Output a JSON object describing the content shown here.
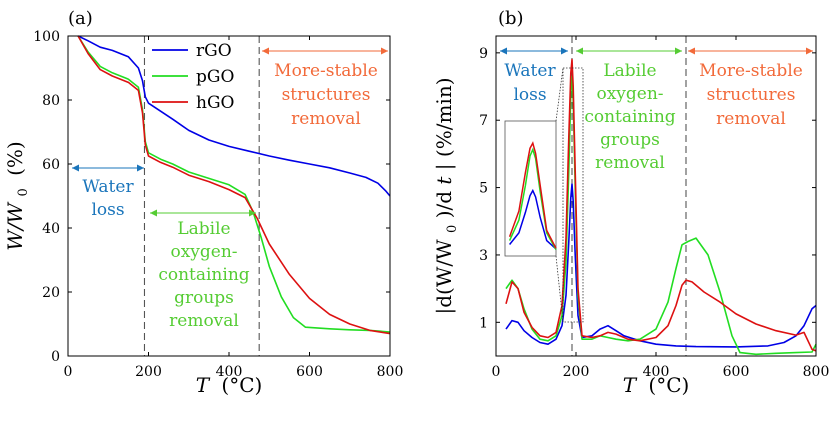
{
  "colors": {
    "rGO": "#0000e6",
    "pGO": "#22dd22",
    "hGO": "#dd1111",
    "water": "#1a75bb",
    "labile": "#55cc33",
    "stable": "#f26a3a",
    "dash": "#555555"
  },
  "panel_labels": {
    "a": "(a)",
    "b": "(b)"
  },
  "axis_labels": {
    "a_x_var": "T",
    "a_x_unit": "(°C)",
    "a_y_var": "W/W",
    "a_y_sub": "0",
    "a_y_unit": "(%)",
    "b_x_var": "T",
    "b_x_unit": "(°C)",
    "b_y_var": "|d(W/W",
    "b_y_sub": "0",
    "b_y_mid": ")/d",
    "b_y_t": "t",
    "b_y_unit": "| (%/min)"
  },
  "legend": [
    "rGO",
    "pGO",
    "hGO"
  ],
  "annotations": {
    "a_water": [
      "Water",
      "loss"
    ],
    "a_labile": [
      "Labile",
      "oxygen-",
      "containing",
      "groups",
      "removal"
    ],
    "a_stable": [
      "More-stable",
      "structures",
      "removal"
    ],
    "b_water": [
      "Water",
      "loss"
    ],
    "b_labile": [
      "Labile",
      "oxygen-",
      "containing",
      "groups",
      "removal"
    ],
    "b_stable": [
      "More-stable",
      "structures",
      "removal"
    ]
  },
  "chart_data": [
    {
      "type": "line",
      "panel": "(a)",
      "xlabel": "T (°C)",
      "ylabel": "W/W0 (%)",
      "xlim": [
        0,
        800
      ],
      "ylim": [
        0,
        100
      ],
      "xticks": [
        0,
        200,
        400,
        600,
        800
      ],
      "yticks": [
        0,
        20,
        40,
        60,
        80,
        100
      ],
      "vlines": [
        190,
        475
      ],
      "series": [
        {
          "name": "rGO",
          "x": [
            25,
            50,
            80,
            110,
            150,
            175,
            185,
            192,
            200,
            230,
            260,
            300,
            350,
            400,
            450,
            500,
            550,
            600,
            650,
            700,
            740,
            770,
            790,
            800
          ],
          "y": [
            100,
            98.5,
            96.5,
            95.5,
            93.5,
            90,
            86,
            81,
            79,
            76.5,
            74,
            70.5,
            67.5,
            65.5,
            64,
            62.5,
            61.2,
            60,
            58.8,
            57.2,
            55.8,
            54,
            51.5,
            50
          ]
        },
        {
          "name": "pGO",
          "x": [
            25,
            50,
            80,
            110,
            150,
            175,
            185,
            192,
            200,
            230,
            260,
            300,
            350,
            400,
            440,
            460,
            480,
            500,
            530,
            560,
            590,
            650,
            700,
            750,
            800
          ],
          "y": [
            100,
            95,
            90.5,
            88.5,
            86.5,
            84,
            77,
            67,
            63.5,
            61.5,
            60,
            57.5,
            55.5,
            53.5,
            50.5,
            45,
            37,
            28,
            18.5,
            12,
            9,
            8.5,
            8.2,
            8,
            7.5
          ]
        },
        {
          "name": "hGO",
          "x": [
            25,
            50,
            80,
            110,
            150,
            175,
            185,
            192,
            200,
            230,
            260,
            300,
            350,
            400,
            440,
            470,
            500,
            550,
            600,
            650,
            700,
            750,
            800
          ],
          "y": [
            100,
            94.5,
            89.5,
            87.5,
            85.5,
            83,
            76,
            66,
            62.5,
            60.5,
            59,
            56.5,
            54.5,
            52,
            49.5,
            43,
            35,
            25.5,
            18,
            13,
            10,
            8,
            7
          ]
        }
      ]
    },
    {
      "type": "line",
      "panel": "(b)",
      "xlabel": "T (°C)",
      "ylabel": "|d(W/W0)/dt| (%/min)",
      "xlim": [
        0,
        800
      ],
      "ylim": [
        0,
        9.5
      ],
      "xticks": [
        0,
        200,
        400,
        600,
        800
      ],
      "yticks": [
        1,
        3,
        5,
        7,
        9
      ],
      "vlines": [
        190,
        475
      ],
      "series": [
        {
          "name": "rGO",
          "x": [
            25,
            40,
            55,
            70,
            90,
            110,
            130,
            150,
            165,
            175,
            182,
            187,
            190,
            193,
            198,
            205,
            215,
            240,
            260,
            280,
            300,
            320,
            360,
            400,
            450,
            500,
            600,
            680,
            720,
            750,
            770,
            790,
            800
          ],
          "y": [
            0.8,
            1.05,
            1.0,
            0.75,
            0.55,
            0.4,
            0.35,
            0.5,
            0.9,
            1.8,
            3.4,
            4.7,
            5.1,
            4.6,
            3.0,
            1.2,
            0.55,
            0.6,
            0.8,
            0.9,
            0.75,
            0.6,
            0.45,
            0.35,
            0.3,
            0.28,
            0.27,
            0.3,
            0.4,
            0.6,
            0.9,
            1.4,
            1.5
          ]
        },
        {
          "name": "pGO",
          "x": [
            25,
            40,
            55,
            70,
            90,
            110,
            130,
            150,
            165,
            175,
            182,
            187,
            190,
            193,
            198,
            205,
            215,
            240,
            260,
            280,
            300,
            330,
            360,
            400,
            430,
            450,
            465,
            480,
            500,
            530,
            560,
            590,
            610,
            650,
            700,
            750,
            790,
            800
          ],
          "y": [
            2.0,
            2.25,
            2.0,
            1.4,
            0.8,
            0.5,
            0.45,
            0.6,
            1.2,
            2.8,
            5.5,
            7.8,
            8.3,
            7.6,
            5.0,
            1.8,
            0.5,
            0.5,
            0.6,
            0.55,
            0.5,
            0.45,
            0.5,
            0.8,
            1.6,
            2.6,
            3.3,
            3.4,
            3.5,
            3.0,
            1.9,
            0.6,
            0.1,
            0.05,
            0.08,
            0.1,
            0.12,
            0.35
          ]
        },
        {
          "name": "hGO",
          "x": [
            25,
            40,
            55,
            70,
            90,
            110,
            130,
            150,
            165,
            175,
            182,
            187,
            190,
            193,
            198,
            205,
            215,
            240,
            260,
            280,
            300,
            330,
            360,
            400,
            430,
            450,
            465,
            475,
            490,
            520,
            560,
            600,
            650,
            700,
            750,
            770,
            790,
            800
          ],
          "y": [
            1.55,
            2.2,
            2.0,
            1.3,
            0.85,
            0.6,
            0.55,
            0.7,
            1.5,
            3.5,
            6.5,
            8.4,
            8.8,
            8.0,
            5.5,
            2.0,
            0.6,
            0.55,
            0.6,
            0.7,
            0.65,
            0.5,
            0.45,
            0.55,
            0.9,
            1.5,
            2.1,
            2.25,
            2.2,
            1.9,
            1.6,
            1.25,
            0.95,
            0.75,
            0.62,
            0.7,
            0.2,
            0.15
          ]
        }
      ],
      "inset": {
        "xlim": [
          160,
          215
        ],
        "zoom_box": [
          175,
          205,
          0.9,
          9.2
        ]
      }
    }
  ]
}
